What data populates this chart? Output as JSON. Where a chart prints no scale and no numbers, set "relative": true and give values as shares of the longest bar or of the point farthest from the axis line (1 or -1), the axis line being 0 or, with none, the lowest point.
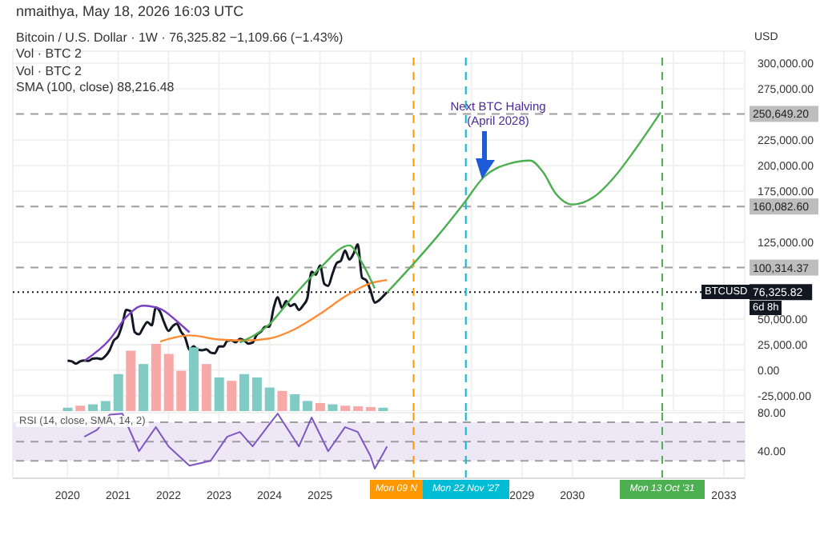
{
  "chart_data": [
    {
      "type": "line",
      "title": "Bitcoin / U.S. Dollar · 1W · 76,325.82 −1,109.66 (−1.43%)",
      "ylabel": "USD",
      "legend": false,
      "grid": true,
      "tick_labels": "y",
      "xlim": [
        "2018-12",
        "2033-06"
      ],
      "ylim": [
        -40000,
        312000
      ],
      "xticks": [
        {
          "value": "2020-01",
          "label": null
        },
        {
          "value": "2021-01",
          "label": null
        },
        {
          "value": "2022-01",
          "label": null
        },
        {
          "value": "2023-01",
          "label": null
        },
        {
          "value": "2024-01",
          "label": null
        },
        {
          "value": "2025-01",
          "label": null
        },
        {
          "value": "2026-01",
          "label": null
        },
        {
          "value": "2027-01",
          "label": null
        },
        {
          "value": "2028-01",
          "label": null
        },
        {
          "value": "2029-01",
          "label": null
        },
        {
          "value": "2030-01",
          "label": null
        },
        {
          "value": "2031-01",
          "label": null
        },
        {
          "value": "2032-01",
          "label": null
        },
        {
          "value": "2033-01",
          "label": null
        }
      ],
      "yticks": [
        {
          "value": -25000,
          "label": "-25,000.00"
        },
        {
          "value": 0,
          "label": "0.00"
        },
        {
          "value": 25000,
          "label": "25,000.00"
        },
        {
          "value": 50000,
          "label": "50,000.00"
        },
        {
          "value": 125000,
          "label": "125,000.00"
        },
        {
          "value": 175000,
          "label": "175,000.00"
        },
        {
          "value": 200000,
          "label": "200,000.00"
        },
        {
          "value": 225000,
          "label": "225,000.00"
        },
        {
          "value": 275000,
          "label": "275,000.00"
        },
        {
          "value": 300000,
          "label": "300,000.00"
        }
      ],
      "series": [
        {
          "name": "BTCUSD",
          "color": "#131722",
          "x": [
            "2020-01",
            "2020-02",
            "2020-03",
            "2020-04",
            "2020-05",
            "2020-06",
            "2020-07",
            "2020-08",
            "2020-09",
            "2020-10",
            "2020-11",
            "2020-12",
            "2021-01",
            "2021-02",
            "2021-03",
            "2021-04",
            "2021-05",
            "2021-06",
            "2021-07",
            "2021-08",
            "2021-09",
            "2021-10",
            "2021-11",
            "2021-12",
            "2022-01",
            "2022-02",
            "2022-03",
            "2022-04",
            "2022-05",
            "2022-06",
            "2022-07",
            "2022-08",
            "2022-09",
            "2022-10",
            "2022-11",
            "2022-12",
            "2023-01",
            "2023-02",
            "2023-03",
            "2023-04",
            "2023-05",
            "2023-06",
            "2023-07",
            "2023-08",
            "2023-09",
            "2023-10",
            "2023-11",
            "2023-12",
            "2024-01",
            "2024-02",
            "2024-03",
            "2024-04",
            "2024-05",
            "2024-06",
            "2024-07",
            "2024-08",
            "2024-09",
            "2024-10",
            "2024-11",
            "2024-12",
            "2025-01",
            "2025-02",
            "2025-03",
            "2025-04",
            "2025-05",
            "2025-06",
            "2025-07",
            "2025-08",
            "2025-09",
            "2025-10",
            "2025-11",
            "2025-12",
            "2026-01",
            "2026-02",
            "2026-03",
            "2026-04",
            "2026-05"
          ],
          "values": [
            9300,
            8600,
            6400,
            8600,
            9500,
            9100,
            11300,
            11600,
            10800,
            13800,
            19700,
            29000,
            33100,
            45200,
            58900,
            57700,
            37300,
            35000,
            41500,
            47100,
            43800,
            61300,
            57000,
            46300,
            38500,
            43200,
            45500,
            37700,
            31800,
            19900,
            23300,
            20000,
            19400,
            20500,
            17200,
            16500,
            23100,
            23100,
            28500,
            29300,
            27200,
            30500,
            29200,
            26000,
            27000,
            34700,
            37700,
            42300,
            42600,
            61200,
            71300,
            60700,
            67500,
            62700,
            64600,
            59000,
            63300,
            70300,
            96400,
            93400,
            102400,
            84400,
            82500,
            94200,
            104600,
            107100,
            117000,
            108200,
            114000,
            123000,
            90400,
            88000,
            78000,
            66000,
            68000,
            72000,
            76325.82
          ]
        },
        {
          "color": "#ff8c33",
          "x": [
            "2021-11",
            "2022-06",
            "2023-01",
            "2023-07",
            "2024-01",
            "2024-07",
            "2025-01",
            "2025-07",
            "2026-01",
            "2026-05"
          ],
          "values": [
            28000,
            34000,
            30000,
            29000,
            31000,
            40000,
            55000,
            72000,
            85000,
            88216.48
          ]
        },
        {
          "color": "#7b3fc4",
          "x": [
            "2020-05",
            "2020-11",
            "2021-03",
            "2021-07",
            "2021-11",
            "2022-03",
            "2022-06"
          ],
          "values": [
            9000,
            30000,
            52000,
            63000,
            60000,
            48000,
            37000
          ]
        },
        {
          "color": "#4caf50",
          "x": [
            "2023-06",
            "2024-01",
            "2024-06",
            "2025-01",
            "2025-08",
            "2025-11",
            "2026-02"
          ],
          "values": [
            27000,
            45000,
            69000,
            100000,
            122000,
            105000,
            80000
          ]
        },
        {
          "color": "#4caf50",
          "x": [
            "2026-05",
            "2026-11",
            "2027-05",
            "2027-11",
            "2028-04",
            "2028-10",
            "2029-03",
            "2029-06",
            "2029-09",
            "2030-01",
            "2030-06",
            "2030-11",
            "2031-04",
            "2031-10"
          ],
          "values": [
            76000,
            103000,
            131000,
            162000,
            189000,
            202000,
            205000,
            194000,
            173000,
            162000,
            169000,
            189000,
            216000,
            252000
          ]
        }
      ],
      "ref_lines": [
        {
          "axis": "y",
          "value": 250649.2,
          "label": "250,649.20",
          "color": "#9e9e9e",
          "line_style": "dashed"
        },
        {
          "axis": "y",
          "value": 160082.6,
          "label": "160,082.60",
          "color": "#9e9e9e",
          "line_style": "dashed"
        },
        {
          "axis": "y",
          "value": 100314.37,
          "label": "100,314.37",
          "color": "#9e9e9e",
          "line_style": "dashed"
        },
        {
          "axis": "y",
          "value": 76325.82,
          "label": "76,325.82",
          "color": "#131722",
          "line_style": "dotted"
        },
        {
          "axis": "x",
          "value": "2026-11-09",
          "color": "#ff9800",
          "line_style": "dashed"
        },
        {
          "axis": "x",
          "value": "2027-11-22",
          "color": "#00bcd4",
          "line_style": "dashed"
        },
        {
          "axis": "x",
          "value": "2031-10-13",
          "color": "#4caf50",
          "line_style": "dashed"
        }
      ],
      "annotations": [
        "nmaithya, May 18, 2026 16:03 UTC",
        "Vol · BTC 2",
        "Vol · BTC 2",
        "SMA (100, close) 88,216.48",
        "Next BTC Halving (April 2028)",
        "6d 8h"
      ]
    },
    {
      "type": "bar",
      "relative": true,
      "tick_labels": false,
      "xlim": [
        "2018-12",
        "2033-06"
      ],
      "x": [
        "2020-01",
        "2020-04",
        "2020-07",
        "2020-10",
        "2021-01",
        "2021-04",
        "2021-07",
        "2021-10",
        "2022-01",
        "2022-04",
        "2022-07",
        "2022-10",
        "2023-01",
        "2023-04",
        "2023-07",
        "2023-10",
        "2024-01",
        "2024-04",
        "2024-07",
        "2024-10",
        "2025-01",
        "2025-04",
        "2025-07",
        "2025-10",
        "2026-01",
        "2026-04"
      ],
      "values": [
        0.05,
        0.08,
        0.1,
        0.15,
        0.55,
        0.9,
        0.7,
        1.0,
        0.85,
        0.6,
        0.95,
        0.7,
        0.5,
        0.45,
        0.55,
        0.5,
        0.35,
        0.3,
        0.25,
        0.15,
        0.12,
        0.1,
        0.08,
        0.07,
        0.06,
        0.05
      ],
      "colors": [
        "#80cbc4",
        "#f7a9a8",
        "#80cbc4",
        "#80cbc4",
        "#80cbc4",
        "#f7a9a8",
        "#80cbc4",
        "#f7a9a8",
        "#f7a9a8",
        "#f7a9a8",
        "#80cbc4",
        "#f7a9a8",
        "#80cbc4",
        "#f7a9a8",
        "#80cbc4",
        "#80cbc4",
        "#80cbc4",
        "#f7a9a8",
        "#80cbc4",
        "#80cbc4",
        "#f7a9a8",
        "#80cbc4",
        "#f7a9a8",
        "#f7a9a8",
        "#f7a9a8",
        "#80cbc4"
      ]
    },
    {
      "type": "line",
      "title": "RSI (14, close, SMA, 14, 2)",
      "grid": true,
      "xlim": [
        "2018-12",
        "2033-06"
      ],
      "ylim": [
        12,
        80
      ],
      "yticks": [
        {
          "value": 80,
          "label": "80.00"
        },
        {
          "value": 40,
          "label": "40.00"
        }
      ],
      "xticks": [
        {
          "value": "2020-01",
          "label": "2020"
        },
        {
          "value": "2021-01",
          "label": "2021"
        },
        {
          "value": "2022-01",
          "label": "2022"
        },
        {
          "value": "2023-01",
          "label": "2023"
        },
        {
          "value": "2024-01",
          "label": "2024"
        },
        {
          "value": "2025-01",
          "label": "2025"
        },
        {
          "value": "2029-01",
          "label": "2029"
        },
        {
          "value": "2030-01",
          "label": "2030"
        },
        {
          "value": "2033-01",
          "label": "2033"
        }
      ],
      "series": [
        {
          "color": "#7e57c2",
          "x": [
            "2020-05",
            "2020-08",
            "2020-11",
            "2021-02",
            "2021-06",
            "2021-10",
            "2022-01",
            "2022-06",
            "2022-11",
            "2023-03",
            "2023-06",
            "2023-09",
            "2024-01",
            "2024-03",
            "2024-08",
            "2024-11",
            "2025-03",
            "2025-07",
            "2025-10",
            "2026-01",
            "2026-02",
            "2026-05"
          ],
          "values": [
            55,
            62,
            78,
            79,
            40,
            65,
            45,
            25,
            30,
            55,
            60,
            45,
            68,
            79,
            45,
            75,
            40,
            65,
            60,
            35,
            22,
            45
          ]
        }
      ],
      "bands": [
        {
          "axis": "y",
          "from": 30,
          "to": 70,
          "color": "#ede7f6"
        }
      ],
      "ref_lines": [
        {
          "axis": "x",
          "value": "2026-11-09",
          "label": "Mon 09 N",
          "color": "#ff9800",
          "line_style": "dashed"
        },
        {
          "axis": "x",
          "value": "2027-11-22",
          "label": "Mon 22 Nov '27",
          "color": "#00bcd4",
          "line_style": "dashed"
        },
        {
          "axis": "x",
          "value": "2031-10-13",
          "label": "Mon 13 Oct '31",
          "color": "#4caf50",
          "line_style": "dashed"
        },
        {
          "axis": "y",
          "value": 70,
          "color": "#9e9e9e",
          "line_style": "dashed"
        },
        {
          "axis": "y",
          "value": 50,
          "color": "#9e9e9e",
          "line_style": "dashed"
        },
        {
          "axis": "y",
          "value": 30,
          "color": "#9e9e9e",
          "line_style": "dashed"
        }
      ]
    }
  ]
}
